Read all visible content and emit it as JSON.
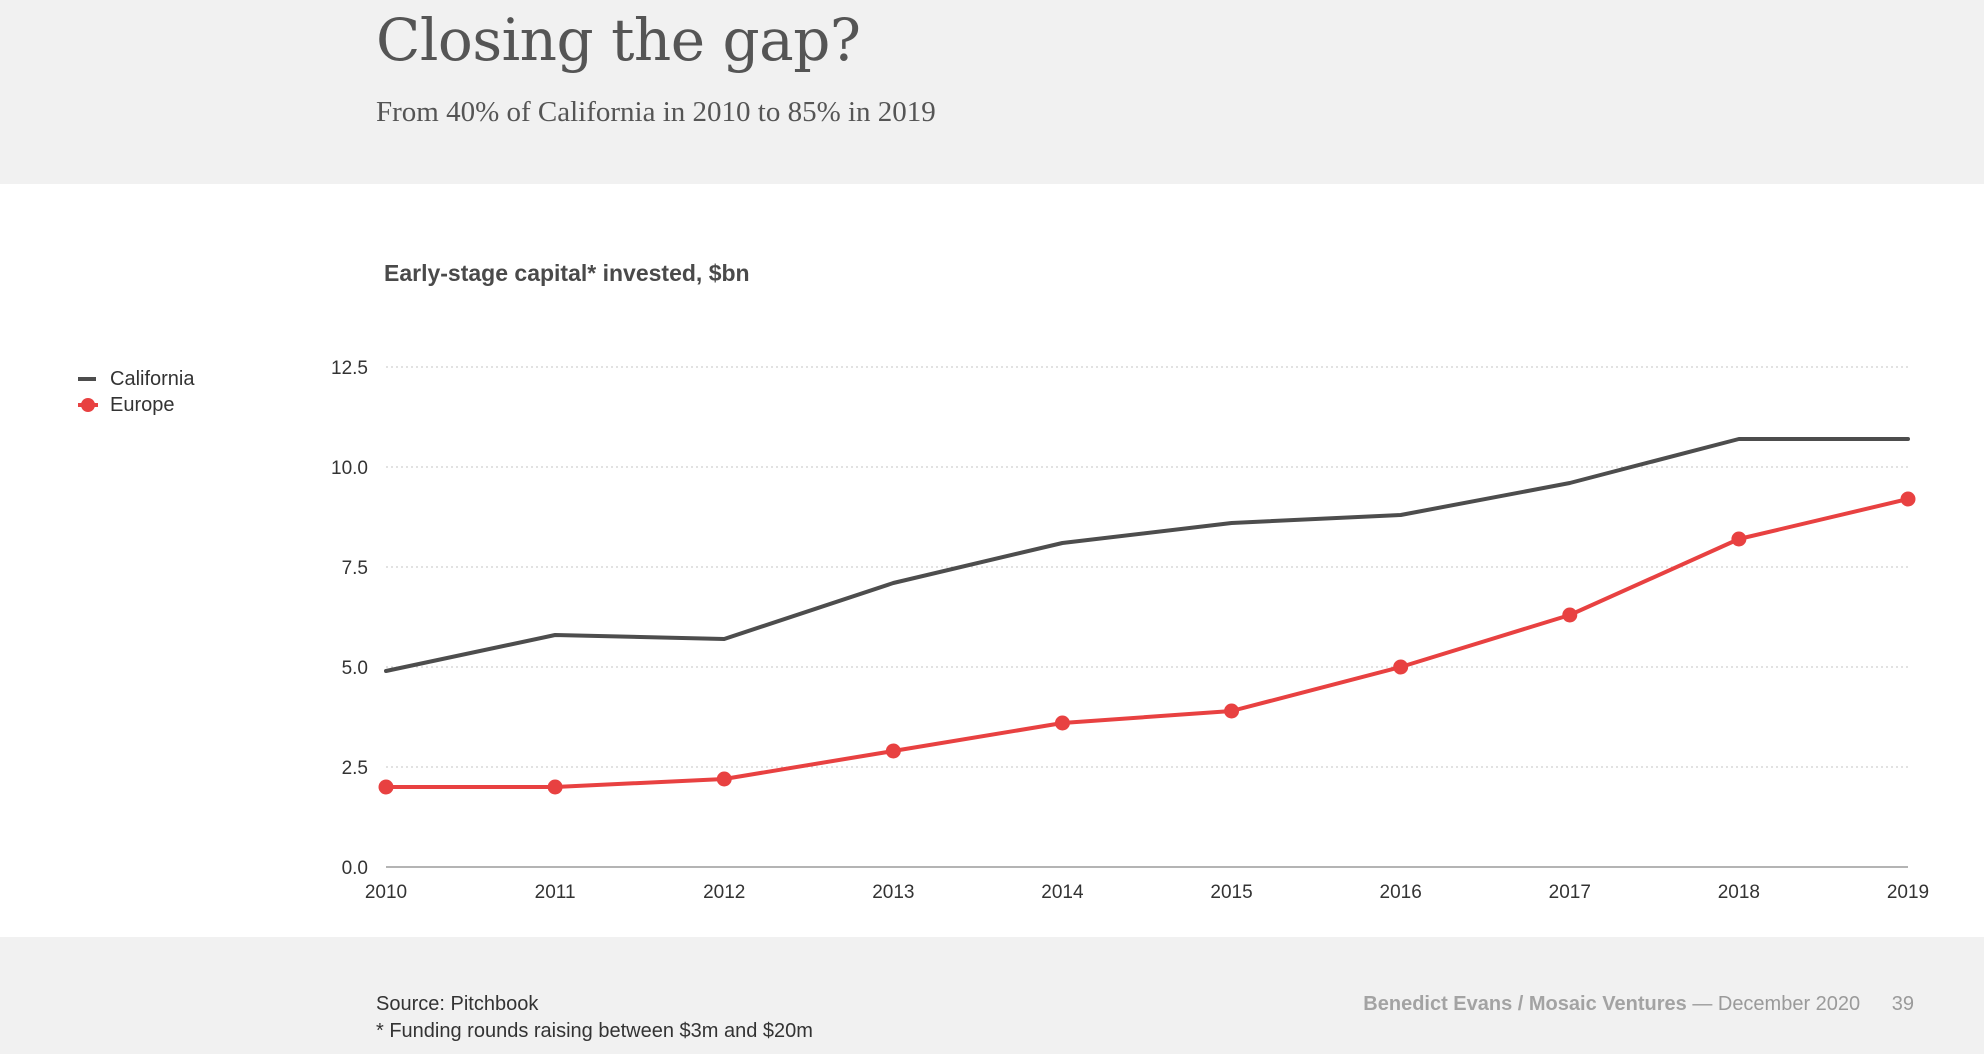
{
  "header": {
    "title": "Closing the gap?",
    "subtitle": "From 40% of California in 2010 to 85% in 2019"
  },
  "legend": {
    "items": [
      {
        "label": "California"
      },
      {
        "label": "Europe"
      }
    ]
  },
  "chart_data": {
    "type": "line",
    "title": "Early-stage capital* invested, $bn",
    "xlabel": "",
    "ylabel": "",
    "x": [
      "2010",
      "2011",
      "2012",
      "2013",
      "2014",
      "2015",
      "2016",
      "2017",
      "2018",
      "2019"
    ],
    "y_ticks": [
      "0.0",
      "2.5",
      "5.0",
      "7.5",
      "10.0",
      "12.5"
    ],
    "ylim": [
      0,
      12.5
    ],
    "grid": true,
    "legend_position": "left",
    "series": [
      {
        "name": "California",
        "color": "#4d4d4d",
        "markers": false,
        "values": [
          4.9,
          5.8,
          5.7,
          7.1,
          8.1,
          8.6,
          8.8,
          9.6,
          10.7,
          10.7
        ]
      },
      {
        "name": "Europe",
        "color": "#e84141",
        "markers": true,
        "values": [
          2.0,
          2.0,
          2.2,
          2.9,
          3.6,
          3.9,
          5.0,
          6.3,
          8.2,
          9.2
        ]
      }
    ]
  },
  "footer": {
    "source": "Source: Pitchbook",
    "note": "* Funding rounds raising between $3m and $20m",
    "author": "Benedict Evans / Mosaic Ventures",
    "date": "— December 2020",
    "page_number": "39"
  }
}
